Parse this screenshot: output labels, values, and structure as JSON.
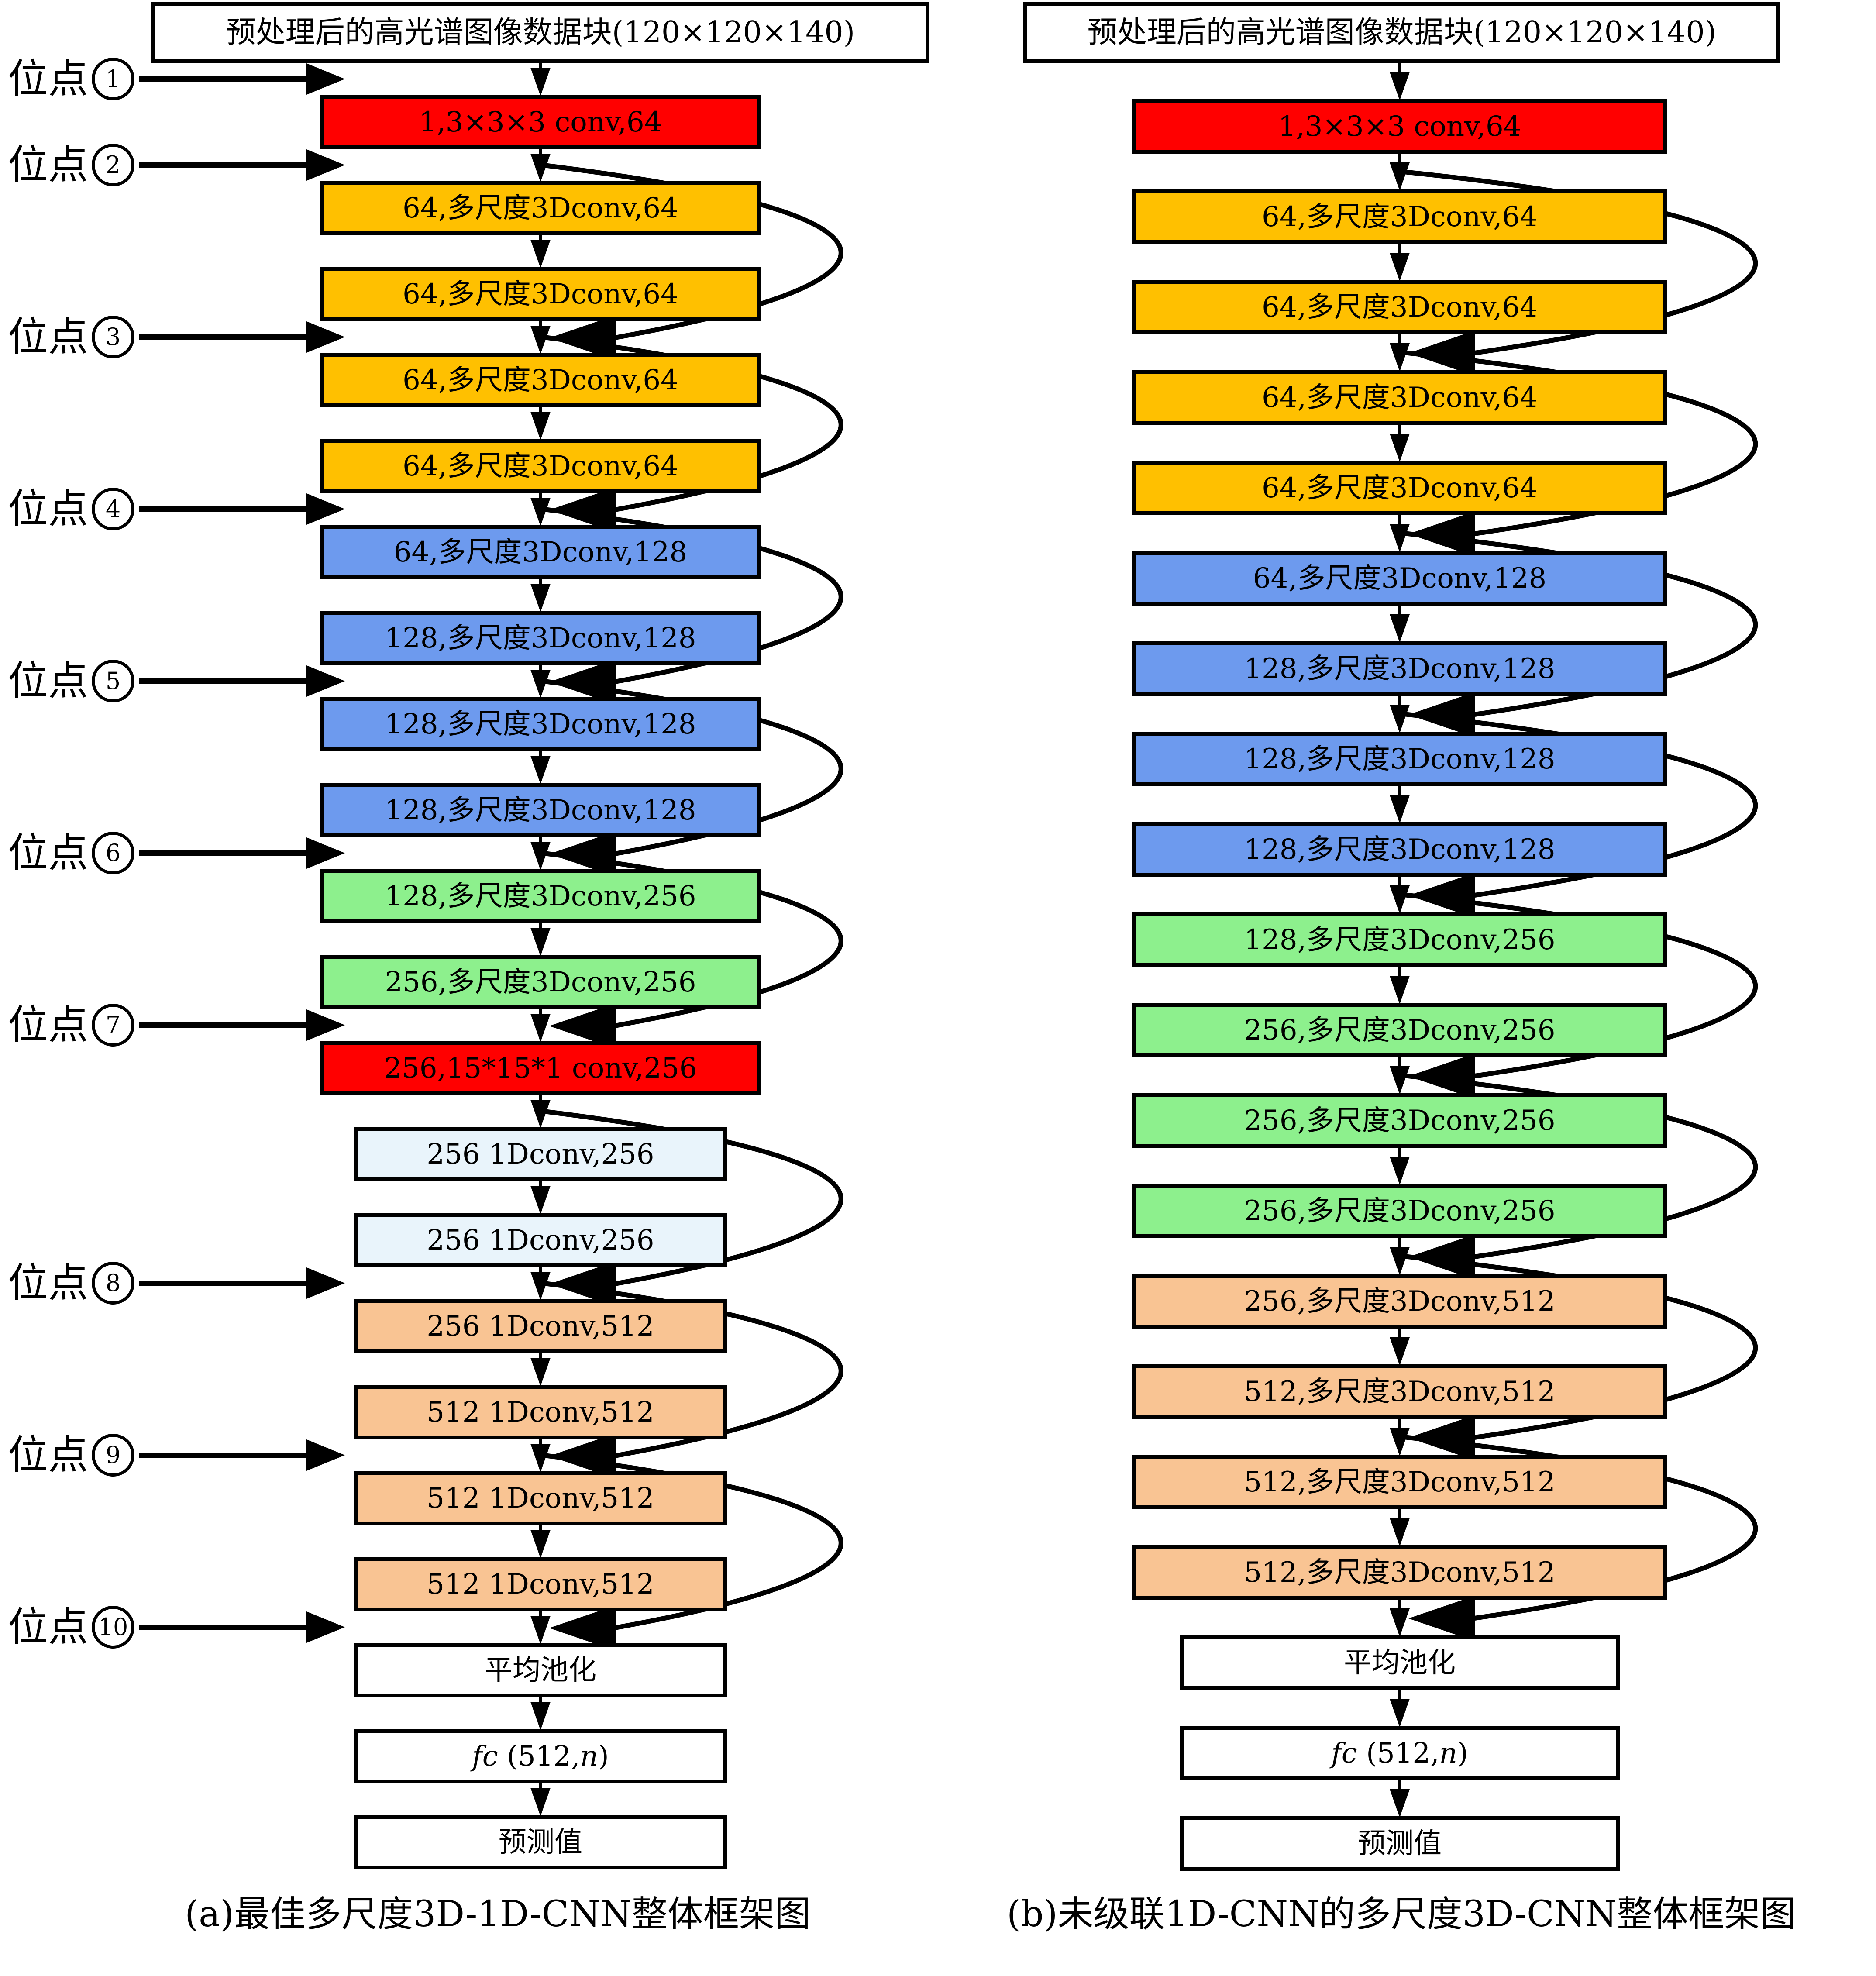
{
  "diagram": {
    "left": {
      "title": "预处理后的高光谱图像数据块(120×120×140)",
      "caption": "(a)最佳多尺度3D-1D-CNN整体框架图",
      "site_prefix": "位点",
      "sites": [
        "1",
        "2",
        "3",
        "4",
        "5",
        "6",
        "7",
        "8",
        "9",
        "10"
      ],
      "boxes": [
        {
          "label": "1,3×3×3 conv,64",
          "color": "red"
        },
        {
          "label": "64,多尺度3Dconv,64",
          "color": "gold"
        },
        {
          "label": "64,多尺度3Dconv,64",
          "color": "gold"
        },
        {
          "label": "64,多尺度3Dconv,64",
          "color": "gold"
        },
        {
          "label": "64,多尺度3Dconv,64",
          "color": "gold"
        },
        {
          "label": "64,多尺度3Dconv,128",
          "color": "blue"
        },
        {
          "label": "128,多尺度3Dconv,128",
          "color": "blue"
        },
        {
          "label": "128,多尺度3Dconv,128",
          "color": "blue"
        },
        {
          "label": "128,多尺度3Dconv,128",
          "color": "blue"
        },
        {
          "label": "128,多尺度3Dconv,256",
          "color": "green"
        },
        {
          "label": "256,多尺度3Dconv,256",
          "color": "green"
        },
        {
          "label": "256,15*15*1 conv,256",
          "color": "red"
        },
        {
          "label": "256 1Dconv,256",
          "color": "pale_blue"
        },
        {
          "label": "256 1Dconv,256",
          "color": "pale_blue"
        },
        {
          "label": "256 1Dconv,512",
          "color": "peach"
        },
        {
          "label": "512 1Dconv,512",
          "color": "peach"
        },
        {
          "label": "512 1Dconv,512",
          "color": "peach"
        },
        {
          "label": "512 1Dconv,512",
          "color": "peach"
        }
      ]
    },
    "right": {
      "title": "预处理后的高光谱图像数据块(120×120×140)",
      "caption": "(b)未级联1D-CNN的多尺度3D-CNN整体框架图",
      "boxes": [
        {
          "label": "1,3×3×3 conv,64",
          "color": "red"
        },
        {
          "label": "64,多尺度3Dconv,64",
          "color": "gold"
        },
        {
          "label": "64,多尺度3Dconv,64",
          "color": "gold"
        },
        {
          "label": "64,多尺度3Dconv,64",
          "color": "gold"
        },
        {
          "label": "64,多尺度3Dconv,64",
          "color": "gold"
        },
        {
          "label": "64,多尺度3Dconv,128",
          "color": "blue"
        },
        {
          "label": "128,多尺度3Dconv,128",
          "color": "blue"
        },
        {
          "label": "128,多尺度3Dconv,128",
          "color": "blue"
        },
        {
          "label": "128,多尺度3Dconv,128",
          "color": "blue"
        },
        {
          "label": "128,多尺度3Dconv,256",
          "color": "green"
        },
        {
          "label": "256,多尺度3Dconv,256",
          "color": "green"
        },
        {
          "label": "256,多尺度3Dconv,256",
          "color": "green"
        },
        {
          "label": "256,多尺度3Dconv,256",
          "color": "green"
        },
        {
          "label": "256,多尺度3Dconv,512",
          "color": "peach"
        },
        {
          "label": "512,多尺度3Dconv,512",
          "color": "peach"
        },
        {
          "label": "512,多尺度3Dconv,512",
          "color": "peach"
        },
        {
          "label": "512,多尺度3Dconv,512",
          "color": "peach"
        }
      ]
    },
    "tail": {
      "pool": "平均池化",
      "fc_pre": "fc",
      "fc_mid": " (512,",
      "fc_var": "n",
      "fc_post": ")",
      "output": "预测值"
    },
    "palette": {
      "red": "#FF0000",
      "gold": "#FFC000",
      "blue": "#6D9AEE",
      "green": "#8DF08D",
      "pale_blue": "#E9F4FB",
      "peach": "#F9C493",
      "box_border": "#000000",
      "background": "#FFFFFF"
    }
  }
}
